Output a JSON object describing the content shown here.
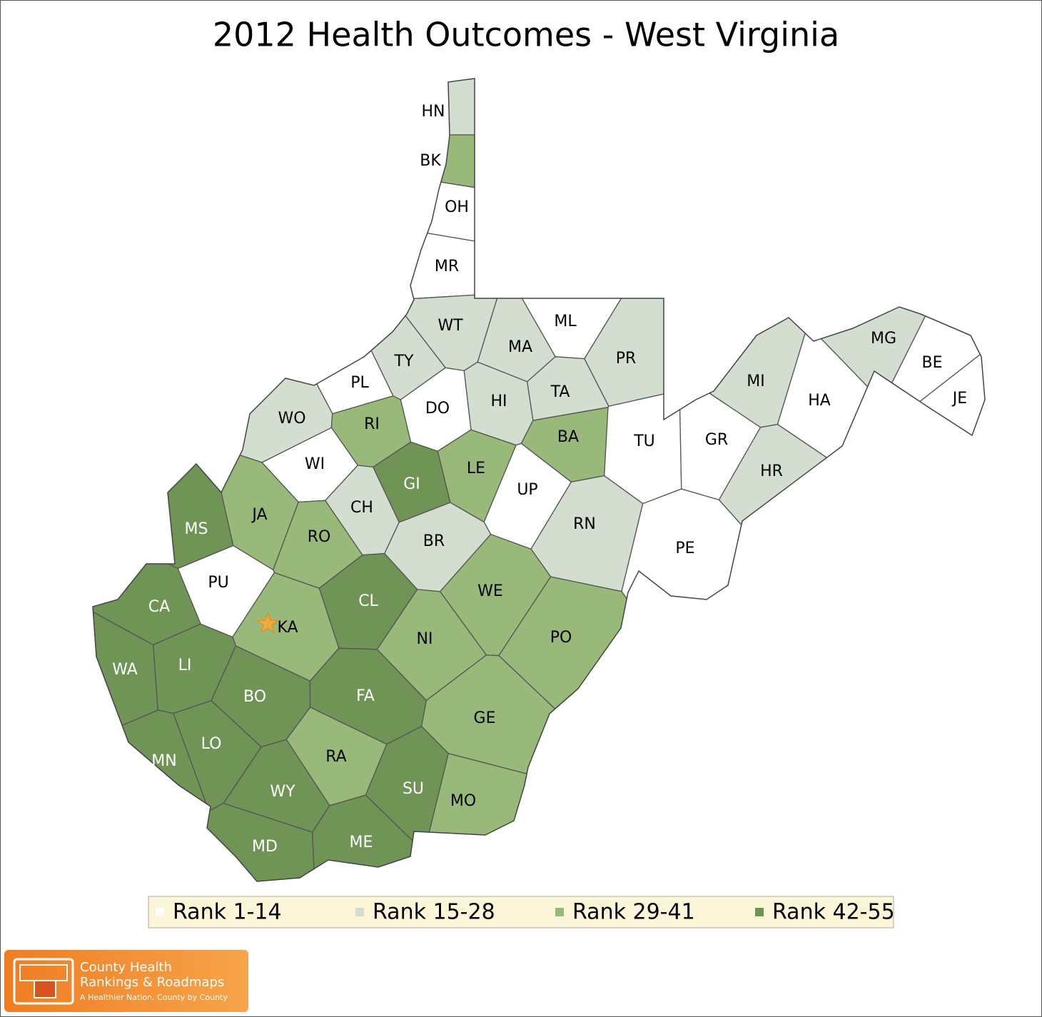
{
  "title": "2012 Health Outcomes - West Virginia",
  "legend": [
    {
      "label": "Rank 1-14",
      "color": "#ffffff"
    },
    {
      "label": "Rank 15-28",
      "color": "#d3ddd0"
    },
    {
      "label": "Rank 29-41",
      "color": "#98b97a"
    },
    {
      "label": "Rank 42-55",
      "color": "#6f9455"
    }
  ],
  "counties": [
    {
      "label": "HN",
      "color": "#d3ddd0"
    },
    {
      "label": "BK",
      "color": "#98b97a"
    },
    {
      "label": "OH",
      "color": "#ffffff"
    },
    {
      "label": "MR",
      "color": "#ffffff"
    },
    {
      "label": "WT",
      "color": "#d3ddd0"
    },
    {
      "label": "ML",
      "color": "#ffffff"
    },
    {
      "label": "MA",
      "color": "#d3ddd0"
    },
    {
      "label": "TY",
      "color": "#d3ddd0"
    },
    {
      "label": "PR",
      "color": "#d3ddd0"
    },
    {
      "label": "PL",
      "color": "#ffffff"
    },
    {
      "label": "DO",
      "color": "#ffffff"
    },
    {
      "label": "HI",
      "color": "#d3ddd0"
    },
    {
      "label": "TA",
      "color": "#d3ddd0"
    },
    {
      "label": "MI",
      "color": "#d3ddd0"
    },
    {
      "label": "MG",
      "color": "#d3ddd0"
    },
    {
      "label": "BE",
      "color": "#ffffff"
    },
    {
      "label": "JE",
      "color": "#ffffff"
    },
    {
      "label": "HA",
      "color": "#ffffff"
    },
    {
      "label": "WO",
      "color": "#d3ddd0"
    },
    {
      "label": "RI",
      "color": "#98b97a"
    },
    {
      "label": "BA",
      "color": "#98b97a"
    },
    {
      "label": "TU",
      "color": "#ffffff"
    },
    {
      "label": "GR",
      "color": "#ffffff"
    },
    {
      "label": "WI",
      "color": "#ffffff"
    },
    {
      "label": "LE",
      "color": "#98b97a"
    },
    {
      "label": "GI",
      "color": "#6f9455"
    },
    {
      "label": "UP",
      "color": "#ffffff"
    },
    {
      "label": "HR",
      "color": "#d3ddd0"
    },
    {
      "label": "MS",
      "color": "#6f9455"
    },
    {
      "label": "JA",
      "color": "#98b97a"
    },
    {
      "label": "CH",
      "color": "#d3ddd0"
    },
    {
      "label": "RO",
      "color": "#98b97a"
    },
    {
      "label": "BR",
      "color": "#d3ddd0"
    },
    {
      "label": "RN",
      "color": "#d3ddd0"
    },
    {
      "label": "PE",
      "color": "#ffffff"
    },
    {
      "label": "PU",
      "color": "#ffffff"
    },
    {
      "label": "CL",
      "color": "#6f9455"
    },
    {
      "label": "WE",
      "color": "#98b97a"
    },
    {
      "label": "CA",
      "color": "#6f9455"
    },
    {
      "label": "KA",
      "color": "#98b97a"
    },
    {
      "label": "NI",
      "color": "#98b97a"
    },
    {
      "label": "PO",
      "color": "#98b97a"
    },
    {
      "label": "WA",
      "color": "#6f9455"
    },
    {
      "label": "LI",
      "color": "#6f9455"
    },
    {
      "label": "BO",
      "color": "#6f9455"
    },
    {
      "label": "FA",
      "color": "#6f9455"
    },
    {
      "label": "GE",
      "color": "#98b97a"
    },
    {
      "label": "LO",
      "color": "#6f9455"
    },
    {
      "label": "MN",
      "color": "#6f9455"
    },
    {
      "label": "RA",
      "color": "#98b97a"
    },
    {
      "label": "WY",
      "color": "#6f9455"
    },
    {
      "label": "SU",
      "color": "#6f9455"
    },
    {
      "label": "MO",
      "color": "#98b97a"
    },
    {
      "label": "MD",
      "color": "#6f9455"
    },
    {
      "label": "ME",
      "color": "#6f9455"
    }
  ],
  "logo": {
    "line1": "County Health",
    "line2": "Rankings & Roadmaps",
    "tagline": "A Healthier Nation, County by County"
  }
}
